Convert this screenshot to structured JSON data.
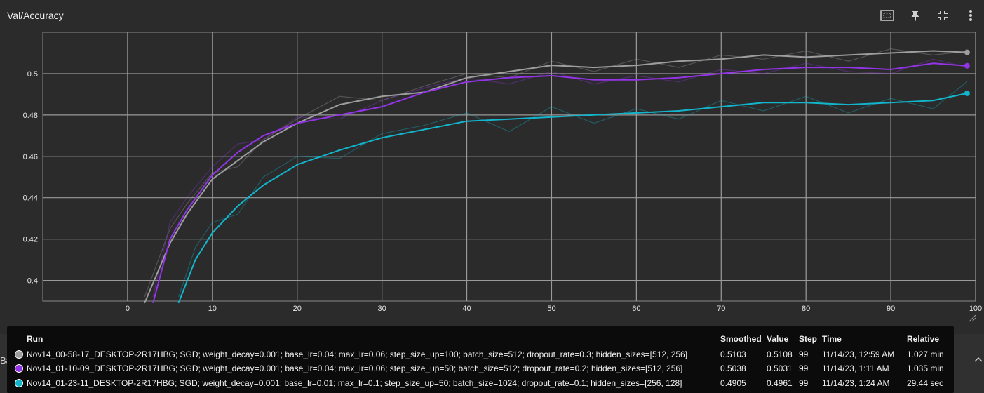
{
  "card": {
    "title": "Val/Accuracy",
    "tools": [
      "fit-domain-icon",
      "pin-icon",
      "collapse-icon",
      "more-vert-icon"
    ]
  },
  "background_text": {
    "left_fragment": "Batch"
  },
  "tooltip": {
    "headers": {
      "run": "Run",
      "smoothed": "Smoothed",
      "value": "Value",
      "step": "Step",
      "time": "Time",
      "relative": "Relative"
    },
    "rows": [
      {
        "color": "#9e9e9e",
        "run": "Nov14_00-58-17_DESKTOP-2R17HBG; SGD; weight_decay=0.001; base_lr=0.04; max_lr=0.06; step_size_up=100; batch_size=512; dropout_rate=0.3; hidden_sizes=[512, 256]",
        "smoothed": "0.5103",
        "value": "0.5108",
        "step": "99",
        "time": "11/14/23, 12:59 AM",
        "relative": "1.027 min"
      },
      {
        "color": "#9334e6",
        "run": "Nov14_01-10-09_DESKTOP-2R17HBG; SGD; weight_decay=0.001; base_lr=0.04; max_lr=0.06; step_size_up=50; batch_size=512; dropout_rate=0.2; hidden_sizes=[512, 256]",
        "smoothed": "0.5038",
        "value": "0.5031",
        "step": "99",
        "time": "11/14/23, 1:11 AM",
        "relative": "1.035 min"
      },
      {
        "color": "#12b5cb",
        "run": "Nov14_01-23-11_DESKTOP-2R17HBG; SGD; weight_decay=0.001; base_lr=0.01; max_lr=0.1; step_size_up=50; batch_size=1024; dropout_rate=0.1; hidden_sizes=[256, 128]",
        "smoothed": "0.4905",
        "value": "0.4961",
        "step": "99",
        "time": "11/14/23, 1:24 AM",
        "relative": "29.44 sec"
      }
    ]
  },
  "chart_data": {
    "type": "line",
    "title": "Val/Accuracy",
    "xlim": [
      -10,
      100
    ],
    "ylim": [
      0.39,
      0.52
    ],
    "x_ticks": [
      0,
      10,
      20,
      30,
      40,
      50,
      60,
      70,
      80,
      90,
      100
    ],
    "y_ticks": [
      0.4,
      0.42,
      0.44,
      0.46,
      0.48,
      0.5
    ],
    "y_tick_labels": [
      "0.4",
      "0.42",
      "0.44",
      "0.46",
      "0.48",
      "0.5"
    ],
    "grid": true,
    "series": [
      {
        "name": "Nov14_00-58-17_DESKTOP-2R17HBG; SGD; weight_decay=0.001; base_lr=0.04; max_lr=0.06; step_size_up=100; batch_size=512; dropout_rate=0.3; hidden_sizes=[512, 256]",
        "color": "#9e9e9e",
        "x": [
          2,
          5,
          7,
          10,
          13,
          16,
          20,
          25,
          30,
          35,
          40,
          45,
          50,
          55,
          60,
          65,
          70,
          75,
          80,
          85,
          90,
          95,
          99
        ],
        "smoothed": [
          0.389,
          0.418,
          0.432,
          0.449,
          0.458,
          0.467,
          0.476,
          0.485,
          0.489,
          0.491,
          0.498,
          0.501,
          0.504,
          0.503,
          0.504,
          0.506,
          0.507,
          0.509,
          0.508,
          0.509,
          0.51,
          0.511,
          0.5103
        ],
        "raw": [
          0.392,
          0.425,
          0.437,
          0.452,
          0.455,
          0.468,
          0.478,
          0.489,
          0.487,
          0.494,
          0.5,
          0.498,
          0.506,
          0.501,
          0.507,
          0.503,
          0.509,
          0.507,
          0.511,
          0.506,
          0.512,
          0.509,
          0.5108
        ]
      },
      {
        "name": "Nov14_01-10-09_DESKTOP-2R17HBG; SGD; weight_decay=0.001; base_lr=0.04; max_lr=0.06; step_size_up=50; batch_size=512; dropout_rate=0.2; hidden_sizes=[512, 256]",
        "color": "#9334e6",
        "x": [
          3,
          5,
          7,
          10,
          13,
          16,
          20,
          25,
          30,
          35,
          40,
          45,
          50,
          55,
          60,
          65,
          70,
          75,
          80,
          85,
          90,
          95,
          99
        ],
        "smoothed": [
          0.389,
          0.42,
          0.434,
          0.451,
          0.462,
          0.47,
          0.476,
          0.48,
          0.484,
          0.491,
          0.496,
          0.498,
          0.499,
          0.497,
          0.497,
          0.498,
          0.5,
          0.502,
          0.503,
          0.503,
          0.502,
          0.505,
          0.5038
        ],
        "raw": [
          0.392,
          0.428,
          0.44,
          0.455,
          0.466,
          0.468,
          0.479,
          0.478,
          0.487,
          0.493,
          0.498,
          0.495,
          0.501,
          0.495,
          0.499,
          0.496,
          0.502,
          0.5,
          0.505,
          0.501,
          0.5,
          0.507,
          0.5031
        ]
      },
      {
        "name": "Nov14_01-23-11_DESKTOP-2R17HBG; SGD; weight_decay=0.001; base_lr=0.01; max_lr=0.1; step_size_up=50; batch_size=1024; dropout_rate=0.1; hidden_sizes=[256, 128]",
        "color": "#12b5cb",
        "x": [
          6,
          8,
          10,
          13,
          16,
          20,
          25,
          30,
          35,
          40,
          45,
          50,
          55,
          60,
          65,
          70,
          75,
          80,
          85,
          90,
          95,
          99
        ],
        "smoothed": [
          0.389,
          0.41,
          0.423,
          0.436,
          0.446,
          0.456,
          0.463,
          0.469,
          0.473,
          0.477,
          0.478,
          0.479,
          0.48,
          0.481,
          0.482,
          0.484,
          0.486,
          0.486,
          0.485,
          0.486,
          0.487,
          0.4905
        ],
        "raw": [
          0.392,
          0.416,
          0.428,
          0.432,
          0.45,
          0.46,
          0.459,
          0.471,
          0.475,
          0.481,
          0.472,
          0.484,
          0.476,
          0.483,
          0.478,
          0.487,
          0.482,
          0.489,
          0.481,
          0.488,
          0.483,
          0.4961
        ]
      }
    ]
  }
}
